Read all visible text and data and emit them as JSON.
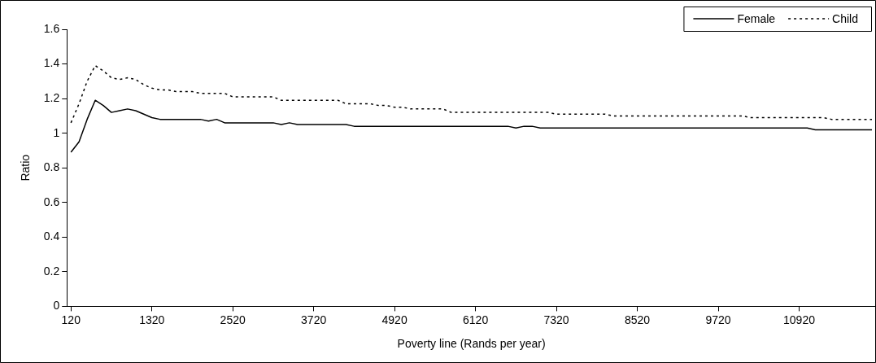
{
  "chart_data": {
    "type": "line",
    "xlabel": "Poverty line (Rands per year)",
    "ylabel": "Ratio",
    "categories": [
      "120",
      null,
      null,
      null,
      null,
      null,
      null,
      null,
      null,
      null,
      "1320",
      null,
      null,
      null,
      null,
      null,
      null,
      null,
      null,
      null,
      "2520",
      null,
      null,
      null,
      null,
      null,
      null,
      null,
      null,
      null,
      "3720",
      null,
      null,
      null,
      null,
      null,
      null,
      null,
      null,
      null,
      "4920",
      null,
      null,
      null,
      null,
      null,
      null,
      null,
      null,
      null,
      "6120",
      null,
      null,
      null,
      null,
      null,
      null,
      null,
      null,
      null,
      "7320",
      null,
      null,
      null,
      null,
      null,
      null,
      null,
      null,
      null,
      "8520",
      null,
      null,
      null,
      null,
      null,
      null,
      null,
      null,
      null,
      "9720",
      null,
      null,
      null,
      null,
      null,
      null,
      null,
      null,
      null,
      "10920",
      null,
      null,
      null,
      null,
      null,
      null,
      null,
      null,
      null
    ],
    "series": [
      {
        "name": "Female",
        "color": "#000000",
        "line_style": "solid",
        "values": [
          0.89,
          0.95,
          1.08,
          1.19,
          1.16,
          1.12,
          1.13,
          1.14,
          1.13,
          1.11,
          1.09,
          1.08,
          1.08,
          1.08,
          1.08,
          1.08,
          1.08,
          1.07,
          1.08,
          1.06,
          1.06,
          1.06,
          1.06,
          1.06,
          1.06,
          1.06,
          1.05,
          1.06,
          1.05,
          1.05,
          1.05,
          1.05,
          1.05,
          1.05,
          1.05,
          1.04,
          1.04,
          1.04,
          1.04,
          1.04,
          1.04,
          1.04,
          1.04,
          1.04,
          1.04,
          1.04,
          1.04,
          1.04,
          1.04,
          1.04,
          1.04,
          1.04,
          1.04,
          1.04,
          1.04,
          1.03,
          1.04,
          1.04,
          1.03,
          1.03,
          1.03,
          1.03,
          1.03,
          1.03,
          1.03,
          1.03,
          1.03,
          1.03,
          1.03,
          1.03,
          1.03,
          1.03,
          1.03,
          1.03,
          1.03,
          1.03,
          1.03,
          1.03,
          1.03,
          1.03,
          1.03,
          1.03,
          1.03,
          1.03,
          1.03,
          1.03,
          1.03,
          1.03,
          1.03,
          1.03,
          1.03,
          1.03,
          1.02,
          1.02,
          1.02,
          1.02,
          1.02,
          1.02,
          1.02,
          1.02
        ]
      },
      {
        "name": "Child",
        "color": "#000000",
        "line_style": "dotted",
        "values": [
          1.06,
          1.17,
          1.3,
          1.39,
          1.36,
          1.32,
          1.31,
          1.32,
          1.31,
          1.28,
          1.26,
          1.25,
          1.25,
          1.24,
          1.24,
          1.24,
          1.23,
          1.23,
          1.23,
          1.23,
          1.21,
          1.21,
          1.21,
          1.21,
          1.21,
          1.21,
          1.19,
          1.19,
          1.19,
          1.19,
          1.19,
          1.19,
          1.19,
          1.19,
          1.17,
          1.17,
          1.17,
          1.17,
          1.16,
          1.16,
          1.15,
          1.15,
          1.14,
          1.14,
          1.14,
          1.14,
          1.14,
          1.12,
          1.12,
          1.12,
          1.12,
          1.12,
          1.12,
          1.12,
          1.12,
          1.12,
          1.12,
          1.12,
          1.12,
          1.12,
          1.11,
          1.11,
          1.11,
          1.11,
          1.11,
          1.11,
          1.11,
          1.1,
          1.1,
          1.1,
          1.1,
          1.1,
          1.1,
          1.1,
          1.1,
          1.1,
          1.1,
          1.1,
          1.1,
          1.1,
          1.1,
          1.1,
          1.1,
          1.1,
          1.09,
          1.09,
          1.09,
          1.09,
          1.09,
          1.09,
          1.09,
          1.09,
          1.09,
          1.09,
          1.08,
          1.08,
          1.08,
          1.08,
          1.08,
          1.08
        ]
      }
    ],
    "ylim": [
      0,
      1.6
    ],
    "yticks": [
      0,
      0.2,
      0.4,
      0.6,
      0.8,
      1,
      1.2,
      1.4,
      1.6
    ],
    "grid": false,
    "legend": "top right",
    "marker": "none"
  }
}
